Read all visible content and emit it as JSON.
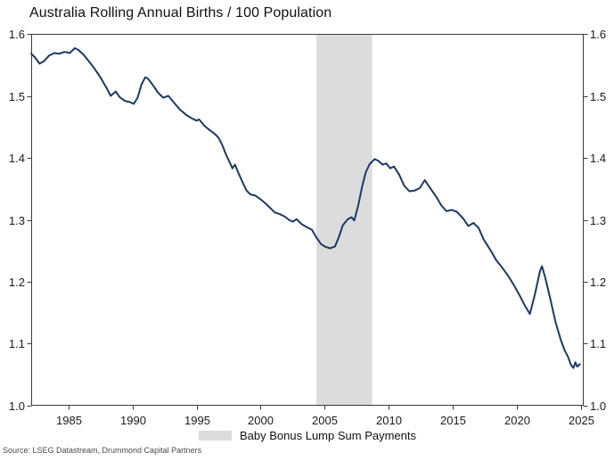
{
  "title": "Australia Rolling Annual Births / 100 Population",
  "source": "Source: LSEG Datastream, Drummond Capital Partners",
  "legend": {
    "label": "Baby Bonus Lump Sum Payments",
    "swatch_color": "#dcdcdc"
  },
  "colors": {
    "line": "#1f3864",
    "band": "#dcdcdc",
    "frame": "#3a3a3a",
    "tick": "#3a3a3a",
    "tick_text": "#1a1a1a"
  },
  "chart_data": {
    "type": "line",
    "title": "Australia Rolling Annual Births / 100 Population",
    "xlabel": "",
    "ylabel": "",
    "xlim": [
      1982.1,
      2025.2
    ],
    "ylim": [
      1.0,
      1.6
    ],
    "x_ticks": [
      1985,
      1990,
      1995,
      2000,
      2005,
      2010,
      2015,
      2020,
      2025
    ],
    "y_ticks": [
      1.0,
      1.1,
      1.2,
      1.3,
      1.4,
      1.5,
      1.6
    ],
    "y_tick_labels": [
      "1.0",
      "1.1",
      "1.2",
      "1.3",
      "1.4",
      "1.5",
      "1.6"
    ],
    "y_axis_sides": [
      "left",
      "right"
    ],
    "grid": false,
    "legend_position": "bottom-center",
    "band": {
      "label": "Baby Bonus Lump Sum Payments",
      "x_start": 2004.35,
      "x_end": 2008.7
    },
    "series": [
      {
        "name": "Rolling annual births per 100 population",
        "x": [
          1982.1,
          1982.4,
          1982.75,
          1983.1,
          1983.5,
          1983.9,
          1984.3,
          1984.7,
          1985.1,
          1985.5,
          1985.8,
          1986.2,
          1986.6,
          1987.0,
          1987.5,
          1988.0,
          1988.3,
          1988.7,
          1989.0,
          1989.4,
          1989.8,
          1990.1,
          1990.4,
          1990.7,
          1991.0,
          1991.2,
          1991.6,
          1992.0,
          1992.4,
          1992.8,
          1993.2,
          1993.7,
          1994.2,
          1994.6,
          1995.0,
          1995.2,
          1995.6,
          1996.0,
          1996.4,
          1996.7,
          1997.0,
          1997.3,
          1997.6,
          1997.8,
          1998.0,
          1998.3,
          1998.6,
          1998.9,
          1999.2,
          1999.6,
          2000.0,
          2000.4,
          2000.8,
          2001.1,
          2001.5,
          2001.9,
          2002.2,
          2002.5,
          2002.8,
          2003.2,
          2003.6,
          2004.0,
          2004.3,
          2004.7,
          2005.0,
          2005.4,
          2005.8,
          2006.1,
          2006.4,
          2006.8,
          2007.1,
          2007.3,
          2007.6,
          2007.9,
          2008.2,
          2008.5,
          2008.9,
          2009.2,
          2009.5,
          2009.8,
          2010.1,
          2010.4,
          2010.8,
          2011.2,
          2011.6,
          2012.0,
          2012.4,
          2012.8,
          2013.2,
          2013.7,
          2014.1,
          2014.5,
          2014.9,
          2015.3,
          2015.8,
          2016.2,
          2016.6,
          2017.0,
          2017.4,
          2017.9,
          2018.4,
          2018.8,
          2019.3,
          2019.8,
          2020.2,
          2020.6,
          2021.0,
          2021.4,
          2021.8,
          2021.95,
          2022.2,
          2022.6,
          2023.0,
          2023.4,
          2023.7,
          2024.0,
          2024.2,
          2024.4,
          2024.55,
          2024.7,
          2024.9
        ],
        "y": [
          1.568,
          1.562,
          1.552,
          1.556,
          1.565,
          1.569,
          1.568,
          1.571,
          1.569,
          1.577,
          1.574,
          1.566,
          1.556,
          1.545,
          1.53,
          1.512,
          1.5,
          1.507,
          1.498,
          1.492,
          1.49,
          1.487,
          1.497,
          1.518,
          1.53,
          1.528,
          1.517,
          1.505,
          1.497,
          1.5,
          1.49,
          1.478,
          1.469,
          1.464,
          1.46,
          1.462,
          1.452,
          1.445,
          1.439,
          1.433,
          1.421,
          1.405,
          1.392,
          1.383,
          1.389,
          1.374,
          1.36,
          1.347,
          1.341,
          1.339,
          1.333,
          1.326,
          1.318,
          1.312,
          1.309,
          1.305,
          1.3,
          1.297,
          1.301,
          1.293,
          1.288,
          1.284,
          1.273,
          1.261,
          1.257,
          1.254,
          1.257,
          1.272,
          1.291,
          1.301,
          1.304,
          1.299,
          1.322,
          1.352,
          1.377,
          1.39,
          1.398,
          1.395,
          1.389,
          1.391,
          1.383,
          1.386,
          1.373,
          1.355,
          1.346,
          1.347,
          1.351,
          1.364,
          1.352,
          1.337,
          1.323,
          1.314,
          1.316,
          1.313,
          1.302,
          1.29,
          1.295,
          1.287,
          1.268,
          1.252,
          1.234,
          1.224,
          1.21,
          1.193,
          1.178,
          1.162,
          1.148,
          1.18,
          1.218,
          1.225,
          1.207,
          1.172,
          1.135,
          1.107,
          1.09,
          1.078,
          1.066,
          1.061,
          1.07,
          1.063,
          1.067
        ]
      }
    ]
  }
}
